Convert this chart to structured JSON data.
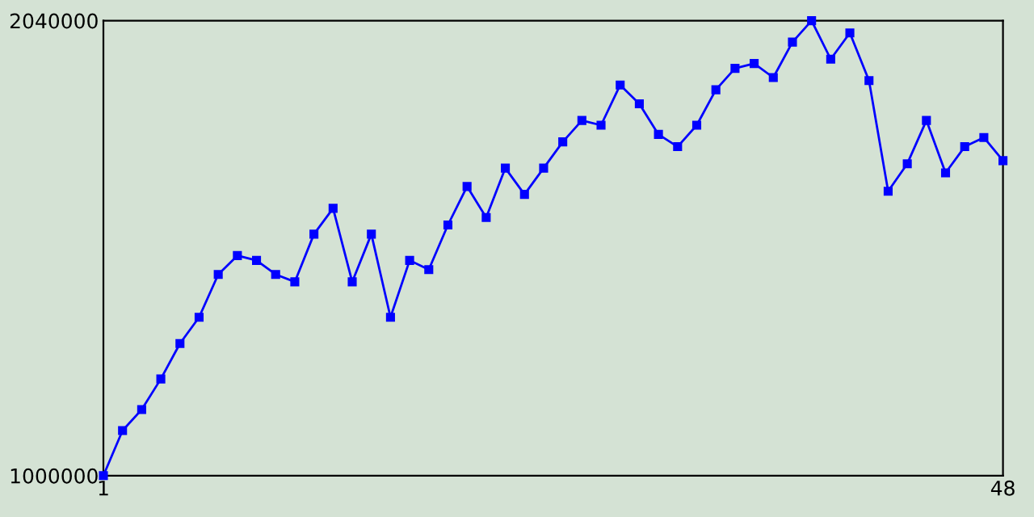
{
  "chart_data": {
    "type": "line",
    "x": [
      1,
      2,
      3,
      4,
      5,
      6,
      7,
      8,
      9,
      10,
      11,
      12,
      13,
      14,
      15,
      16,
      17,
      18,
      19,
      20,
      21,
      22,
      23,
      24,
      25,
      26,
      27,
      28,
      29,
      30,
      31,
      32,
      33,
      34,
      35,
      36,
      37,
      38,
      39,
      40,
      41,
      42,
      43,
      44,
      45,
      46,
      47,
      48
    ],
    "series": [
      {
        "color": "#0000ff",
        "values": [
          1000000,
          1103000,
          1151000,
          1221000,
          1302000,
          1362000,
          1460000,
          1503000,
          1492000,
          1460000,
          1443000,
          1552000,
          1611000,
          1443000,
          1552000,
          1362000,
          1492000,
          1471000,
          1573000,
          1661000,
          1590000,
          1703000,
          1643000,
          1703000,
          1763000,
          1812000,
          1801000,
          1893000,
          1850000,
          1780000,
          1752000,
          1801000,
          1882000,
          1931000,
          1942000,
          1910000,
          1991000,
          2040000,
          1952000,
          2012000,
          1903000,
          1650000,
          1713000,
          1812000,
          1692000,
          1752000,
          1773000,
          1720000
        ]
      }
    ],
    "xlim": [
      1,
      48
    ],
    "xticks": [
      1,
      48
    ],
    "ylim": [
      1000000,
      2040000
    ],
    "yticks": [
      1000000,
      2040000
    ],
    "grid": false,
    "legend": false,
    "marker": "square",
    "line_style": "solid"
  }
}
